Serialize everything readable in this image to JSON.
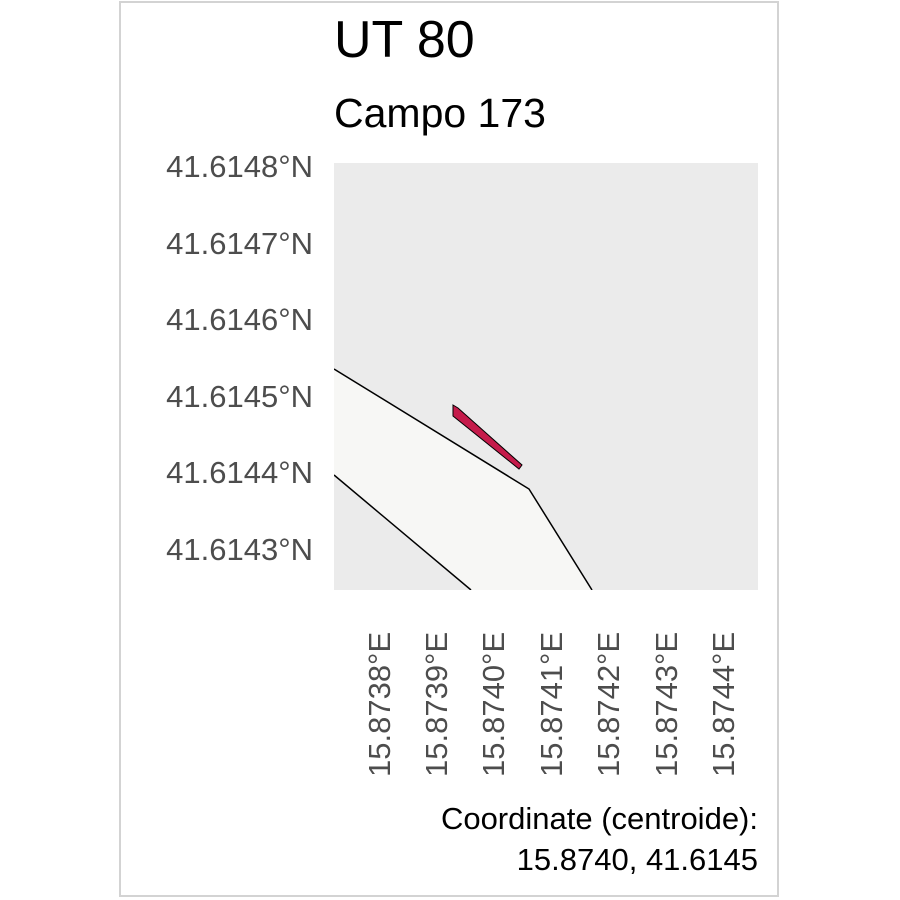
{
  "header": {
    "title": "UT 80",
    "subtitle": "Campo 173"
  },
  "axes": {
    "y_ticks": [
      "41.6148°N",
      "41.6147°N",
      "41.6146°N",
      "41.6145°N",
      "41.6144°N",
      "41.6143°N"
    ],
    "x_ticks": [
      "15.8738°E",
      "15.8739°E",
      "15.8740°E",
      "15.8741°E",
      "15.8742°E",
      "15.8743°E",
      "15.8744°E"
    ]
  },
  "footer": {
    "coord_caption": "Coordinate (centroide):",
    "coord_values": "15.8740, 41.6145"
  },
  "colors": {
    "background_area": "#ebebeb",
    "road_fill": "#f7f7f5",
    "parcel_fill": "#c51b4b",
    "frame_border": "#d3d3d3",
    "axis_text": "#4d4d4d"
  }
}
